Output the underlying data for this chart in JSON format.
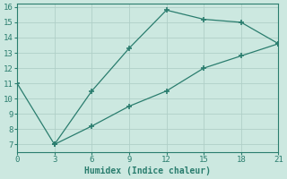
{
  "line1_x": [
    0,
    3,
    6,
    9,
    12,
    15,
    18,
    21
  ],
  "line1_y": [
    11,
    7,
    10.5,
    13.3,
    15.8,
    15.2,
    15.0,
    13.6
  ],
  "line2_x": [
    3,
    6,
    9,
    12,
    15,
    18,
    21
  ],
  "line2_y": [
    7,
    8.2,
    9.5,
    10.5,
    12.0,
    12.8,
    13.6
  ],
  "color": "#2a7d6e",
  "bg_color": "#cce8e0",
  "grid_color": "#b0cfc8",
  "spine_color": "#2a7d6e",
  "xlabel": "Humidex (Indice chaleur)",
  "xlim": [
    0,
    21
  ],
  "ylim": [
    6.5,
    16.2
  ],
  "xticks": [
    0,
    3,
    6,
    9,
    12,
    15,
    18,
    21
  ],
  "yticks": [
    7,
    8,
    9,
    10,
    11,
    12,
    13,
    14,
    15,
    16
  ],
  "font_family": "monospace",
  "xlabel_fontsize": 7,
  "tick_fontsize": 6.5
}
